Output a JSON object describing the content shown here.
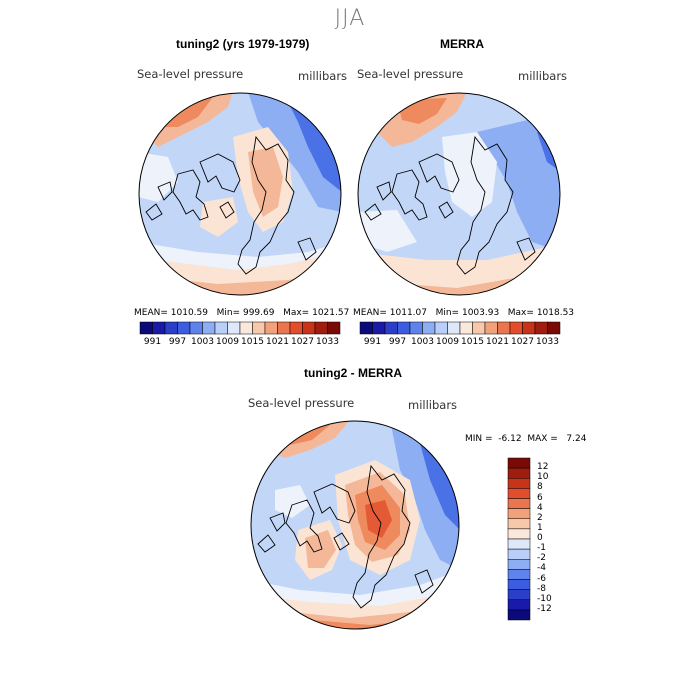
{
  "figure": {
    "season": "JJA"
  },
  "panels": {
    "model": {
      "title": "tuning2 (yrs 1979-1979)",
      "variable": "Sea-level pressure",
      "units": "millibars",
      "stats": {
        "mean_label": "MEAN=",
        "mean": "1010.59",
        "min_label": "Min=",
        "min": "999.69",
        "max_label": "Max=",
        "max": "1021.57"
      }
    },
    "obs": {
      "title": "MERRA",
      "variable": "Sea-level pressure",
      "units": "millibars",
      "stats": {
        "mean_label": "MEAN=",
        "mean": "1011.07",
        "min_label": "Min=",
        "min": "1003.93",
        "max_label": "Max=",
        "max": "1018.53"
      }
    },
    "diff": {
      "title": "tuning2 - MERRA",
      "variable": "Sea-level pressure",
      "units": "millibars",
      "stats": {
        "min_label": "MIN =",
        "min": "-6.12",
        "max_label": "MAX =",
        "max": "7.24"
      }
    }
  },
  "legends": {
    "abs": {
      "colors": [
        "#0a0a7a",
        "#1a1aa8",
        "#2a3ec8",
        "#3d5de0",
        "#5f83ec",
        "#8eaef4",
        "#b9cef8",
        "#dde8fb",
        "#fbe8dc",
        "#f7c8aa",
        "#f2a27a",
        "#ea7650",
        "#e24e2c",
        "#c8341a",
        "#a01c0e",
        "#7a0a06"
      ],
      "labels": [
        "991",
        "997",
        "1003",
        "1009",
        "1015",
        "1021",
        "1027",
        "1033"
      ]
    },
    "diff": {
      "colors": [
        "#7a0a06",
        "#a01c0e",
        "#c8341a",
        "#e24e2c",
        "#ea7650",
        "#f2a27a",
        "#f7c8aa",
        "#fbe8dc",
        "#dde8fb",
        "#b9cef8",
        "#8eaef4",
        "#5f83ec",
        "#3d5de0",
        "#2a3ec8",
        "#1a1aa8",
        "#0a0a7a"
      ],
      "labels": [
        "12",
        "10",
        "8",
        "6",
        "4",
        "2",
        "1",
        "0",
        "-1",
        "-2",
        "-4",
        "-6",
        "-8",
        "-10",
        "-12"
      ]
    }
  },
  "fills": {
    "blue_strong": "#4a72e6",
    "blue_mid": "#8eaef4",
    "blue_light": "#c2d6f8",
    "neutral": "#eef2fb",
    "peach": "#fbe4d4",
    "salmon": "#f4b898",
    "orange": "#ee8a5e",
    "red": "#e45a34"
  }
}
